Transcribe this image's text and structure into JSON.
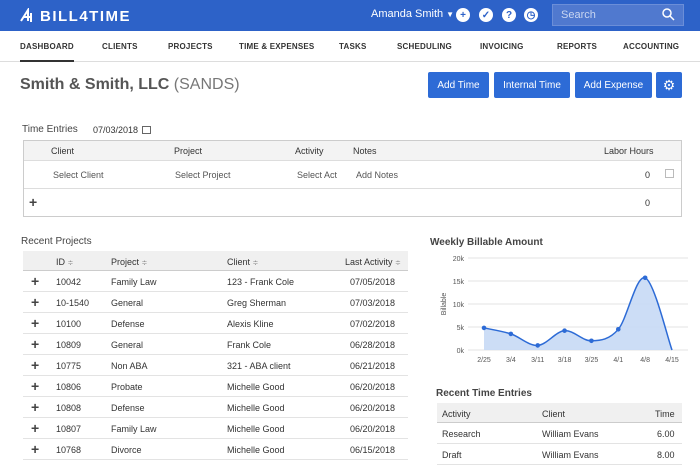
{
  "app": {
    "logo_text": "BILL4TIME"
  },
  "topbar": {
    "user_name": "Amanda Smith",
    "search_placeholder": "Search"
  },
  "nav": {
    "items": [
      "DASHBOARD",
      "CLIENTS",
      "PROJECTS",
      "TIME & EXPENSES",
      "TASKS",
      "SCHEDULING",
      "INVOICING",
      "REPORTS",
      "ACCOUNTING"
    ],
    "active": "DASHBOARD"
  },
  "page": {
    "client_name": "Smith & Smith, LLC",
    "client_code": "(SANDS)"
  },
  "actions": {
    "add_time": "Add Time",
    "internal_time": "Internal Time",
    "add_expense": "Add Expense"
  },
  "time_entries": {
    "label": "Time Entries",
    "date": "07/03/2018",
    "headers": {
      "client": "Client",
      "project": "Project",
      "activity": "Activity",
      "notes": "Notes",
      "labor_hours": "Labor Hours"
    },
    "row": {
      "client": "Select Client",
      "project": "Select Project",
      "activity": "Select Act",
      "notes": "Add Notes",
      "hours": "0"
    },
    "total": "0"
  },
  "recent_projects": {
    "label": "Recent Projects",
    "headers": {
      "id": "ID",
      "project": "Project",
      "client": "Client",
      "last_activity": "Last Activity"
    },
    "sort_glyph": "≑",
    "rows": [
      {
        "id": "10042",
        "project": "Family Law",
        "client": "123 - Frank Cole",
        "last_activity": "07/05/2018"
      },
      {
        "id": "10-1540",
        "project": "General",
        "client": "Greg Sherman",
        "last_activity": "07/03/2018"
      },
      {
        "id": "10100",
        "project": "Defense",
        "client": "Alexis Kline",
        "last_activity": "07/02/2018"
      },
      {
        "id": "10809",
        "project": "General",
        "client": "Frank Cole",
        "last_activity": "06/28/2018"
      },
      {
        "id": "10775",
        "project": "Non ABA",
        "client": "321 - ABA client",
        "last_activity": "06/21/2018"
      },
      {
        "id": "10806",
        "project": "Probate",
        "client": "Michelle Good",
        "last_activity": "06/20/2018"
      },
      {
        "id": "10808",
        "project": "Defense",
        "client": "Michelle Good",
        "last_activity": "06/20/2018"
      },
      {
        "id": "10807",
        "project": "Family Law",
        "client": "Michelle Good",
        "last_activity": "06/20/2018"
      },
      {
        "id": "10768",
        "project": "Divorce",
        "client": "Michelle Good",
        "last_activity": "06/15/2018"
      }
    ]
  },
  "chart_data": {
    "type": "area",
    "title": "Weekly Billable Amount",
    "ylabel": "Billable",
    "categories": [
      "2/25",
      "3/4",
      "3/11",
      "3/18",
      "3/25",
      "4/1",
      "4/8",
      "4/15"
    ],
    "y_tick_labels": [
      "0k",
      "5k",
      "10k",
      "15k",
      "20k"
    ],
    "ylim": [
      0,
      20000
    ],
    "values": [
      4800,
      3500,
      1000,
      4200,
      2000,
      4500,
      15700,
      0
    ],
    "grid": true,
    "colors": {
      "line": "#2d6bd6",
      "fill": "#c7d9f5"
    }
  },
  "recent_time_entries": {
    "label": "Recent Time Entries",
    "headers": {
      "activity": "Activity",
      "client": "Client",
      "time": "Time"
    },
    "rows": [
      {
        "activity": "Research",
        "client": "William Evans",
        "time": "6.00"
      },
      {
        "activity": "Draft",
        "client": "William Evans",
        "time": "8.00"
      }
    ]
  },
  "colors": {
    "brand": "#2d62c8",
    "button": "#2d6bd6"
  }
}
